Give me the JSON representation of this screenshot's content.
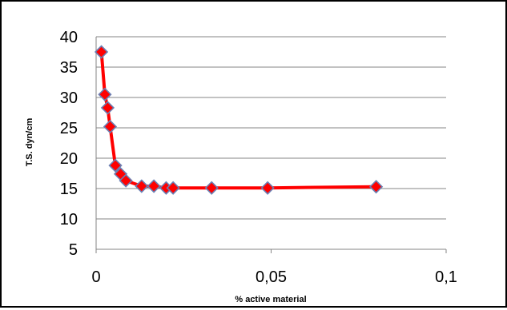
{
  "chart_data": {
    "type": "line",
    "xlabel": "% active material",
    "ylabel": "T.S. dyn/cm",
    "xlim": [
      0,
      0.1
    ],
    "ylim": [
      5,
      40
    ],
    "x_ticks": [
      0,
      0.05,
      0.1
    ],
    "x_tick_labels": [
      "0",
      "0,05",
      "0,1"
    ],
    "y_ticks": [
      5,
      10,
      15,
      20,
      25,
      30,
      35,
      40
    ],
    "y_tick_labels": [
      "5",
      "10",
      "15",
      "20",
      "25",
      "30",
      "35",
      "40"
    ],
    "grid": "horizontal",
    "legend": "none",
    "series": [
      {
        "x": [
          0.0015,
          0.0025,
          0.0033,
          0.004,
          0.0055,
          0.007,
          0.0085,
          0.013,
          0.0165,
          0.02,
          0.022,
          0.033,
          0.049,
          0.08
        ],
        "values": [
          37.5,
          30.5,
          28.3,
          25.2,
          18.8,
          17.4,
          16.3,
          15.4,
          15.4,
          15.1,
          15.1,
          15.1,
          15.1,
          15.3
        ],
        "line_color": "#ff0000",
        "marker_color": "#ff0000",
        "marker_edge_color": "#6b7fb3",
        "marker": "diamond"
      }
    ]
  }
}
